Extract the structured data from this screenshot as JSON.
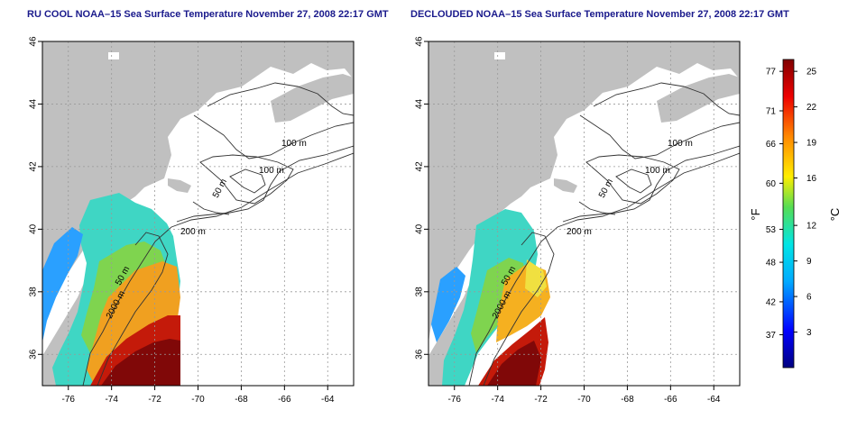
{
  "panels": [
    {
      "id": "left",
      "title": "RU COOL NOAA–15 Sea Surface Temperature November 27, 2008 22:17 GMT"
    },
    {
      "id": "right",
      "title": "DECLOUDED NOAA–15 Sea Surface Temperature November 27, 2008 22:17 GMT"
    }
  ],
  "axes": {
    "lon_ticks": [
      "-76",
      "-74",
      "-72",
      "-70",
      "-68",
      "-66",
      "-64"
    ],
    "lat_ticks": [
      "46",
      "44",
      "42",
      "40",
      "38",
      "36"
    ],
    "lon_range": [
      -77.2,
      -62.8
    ],
    "lat_range": [
      35,
      46
    ]
  },
  "contour_labels": [
    "100 m",
    "100 m",
    "50 m",
    "200 m",
    "50 m",
    "2000 m"
  ],
  "colorbar": {
    "f_label": "°F",
    "c_label": "°C",
    "f_ticks": [
      "77",
      "71",
      "66",
      "60",
      "53",
      "48",
      "42",
      "37"
    ],
    "c_ticks": [
      "25",
      "22",
      "19",
      "16",
      "12",
      "9",
      "6",
      "3"
    ],
    "c_range": [
      0,
      26
    ]
  },
  "colors": {
    "land": "#c0c0c0",
    "title": "#1a1a8c",
    "scale": [
      "#000080",
      "#0000ff",
      "#00aaff",
      "#00e5e5",
      "#55dd55",
      "#ffee00",
      "#ff8800",
      "#ee0000",
      "#800000"
    ]
  }
}
